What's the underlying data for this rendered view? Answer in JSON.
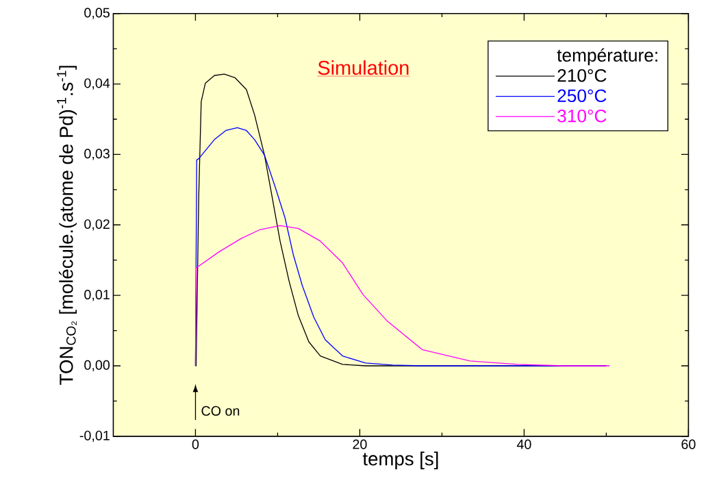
{
  "chart_data": {
    "type": "line",
    "title": "Simulation",
    "xlabel": "temps [s]",
    "ylabel": "TON$_{CO₂}$ [molécule.(atome de Pd)$^{-1}$.s$^{-1}$]",
    "legend_title": "température:",
    "legend": "top right",
    "xlim": [
      -10,
      60
    ],
    "xticks": [
      0,
      20,
      40,
      60
    ],
    "ylim": [
      -0.01,
      0.05
    ],
    "yticks": [
      {
        "value": -0.01,
        "label": "-0,01"
      },
      {
        "value": 0,
        "label": "0,00"
      },
      {
        "value": 0.01,
        "label": "0,01"
      },
      {
        "value": 0.02,
        "label": "0,02"
      },
      {
        "value": 0.03,
        "label": "0,03"
      },
      {
        "value": 0.04,
        "label": "0,04"
      },
      {
        "value": 0.05,
        "label": "0,05"
      }
    ],
    "annotations": [
      "CO on"
    ],
    "series": [
      {
        "name": "210°C",
        "color": "#000000",
        "x": [
          0,
          0.08,
          0.4,
          0.7,
          1.2,
          2.3,
          3.5,
          4.8,
          6.2,
          7.2,
          8.4,
          9.2,
          10.3,
          11.4,
          12.5,
          13.8,
          15.2,
          17.9,
          20.7,
          30,
          50
        ],
        "values": [
          0,
          0,
          0.0241,
          0.0375,
          0.0401,
          0.0412,
          0.0414,
          0.0409,
          0.0392,
          0.0356,
          0.0299,
          0.0248,
          0.0177,
          0.012,
          0.0072,
          0.0034,
          0.0014,
          0.0002,
          0,
          0,
          0
        ]
      },
      {
        "name": "250°C",
        "color": "#0000ff",
        "x": [
          0,
          0.15,
          0.4,
          2.3,
          3.7,
          5.1,
          6.2,
          7.2,
          8.4,
          9.7,
          10.9,
          11.9,
          13.0,
          14.4,
          15.8,
          17.9,
          20.7,
          24,
          27.6,
          40,
          50
        ],
        "values": [
          0,
          0.0292,
          0.0294,
          0.0321,
          0.0334,
          0.0338,
          0.0334,
          0.0321,
          0.0299,
          0.0254,
          0.021,
          0.0158,
          0.0114,
          0.0069,
          0.0037,
          0.0014,
          0.0004,
          0.0001,
          0,
          0,
          0
        ]
      },
      {
        "name": "310°C",
        "color": "#ff00ff",
        "x": [
          0,
          0.1,
          2.9,
          5.6,
          7.8,
          10.3,
          12.5,
          15.2,
          17.9,
          20.4,
          23.3,
          27.6,
          33.4,
          39.2,
          45,
          50.4
        ],
        "values": [
          0,
          0.0139,
          0.0162,
          0.0181,
          0.0193,
          0.0199,
          0.0195,
          0.0177,
          0.0146,
          0.0101,
          0.0064,
          0.0023,
          0.0007,
          0.0002,
          0,
          0
        ]
      }
    ]
  }
}
